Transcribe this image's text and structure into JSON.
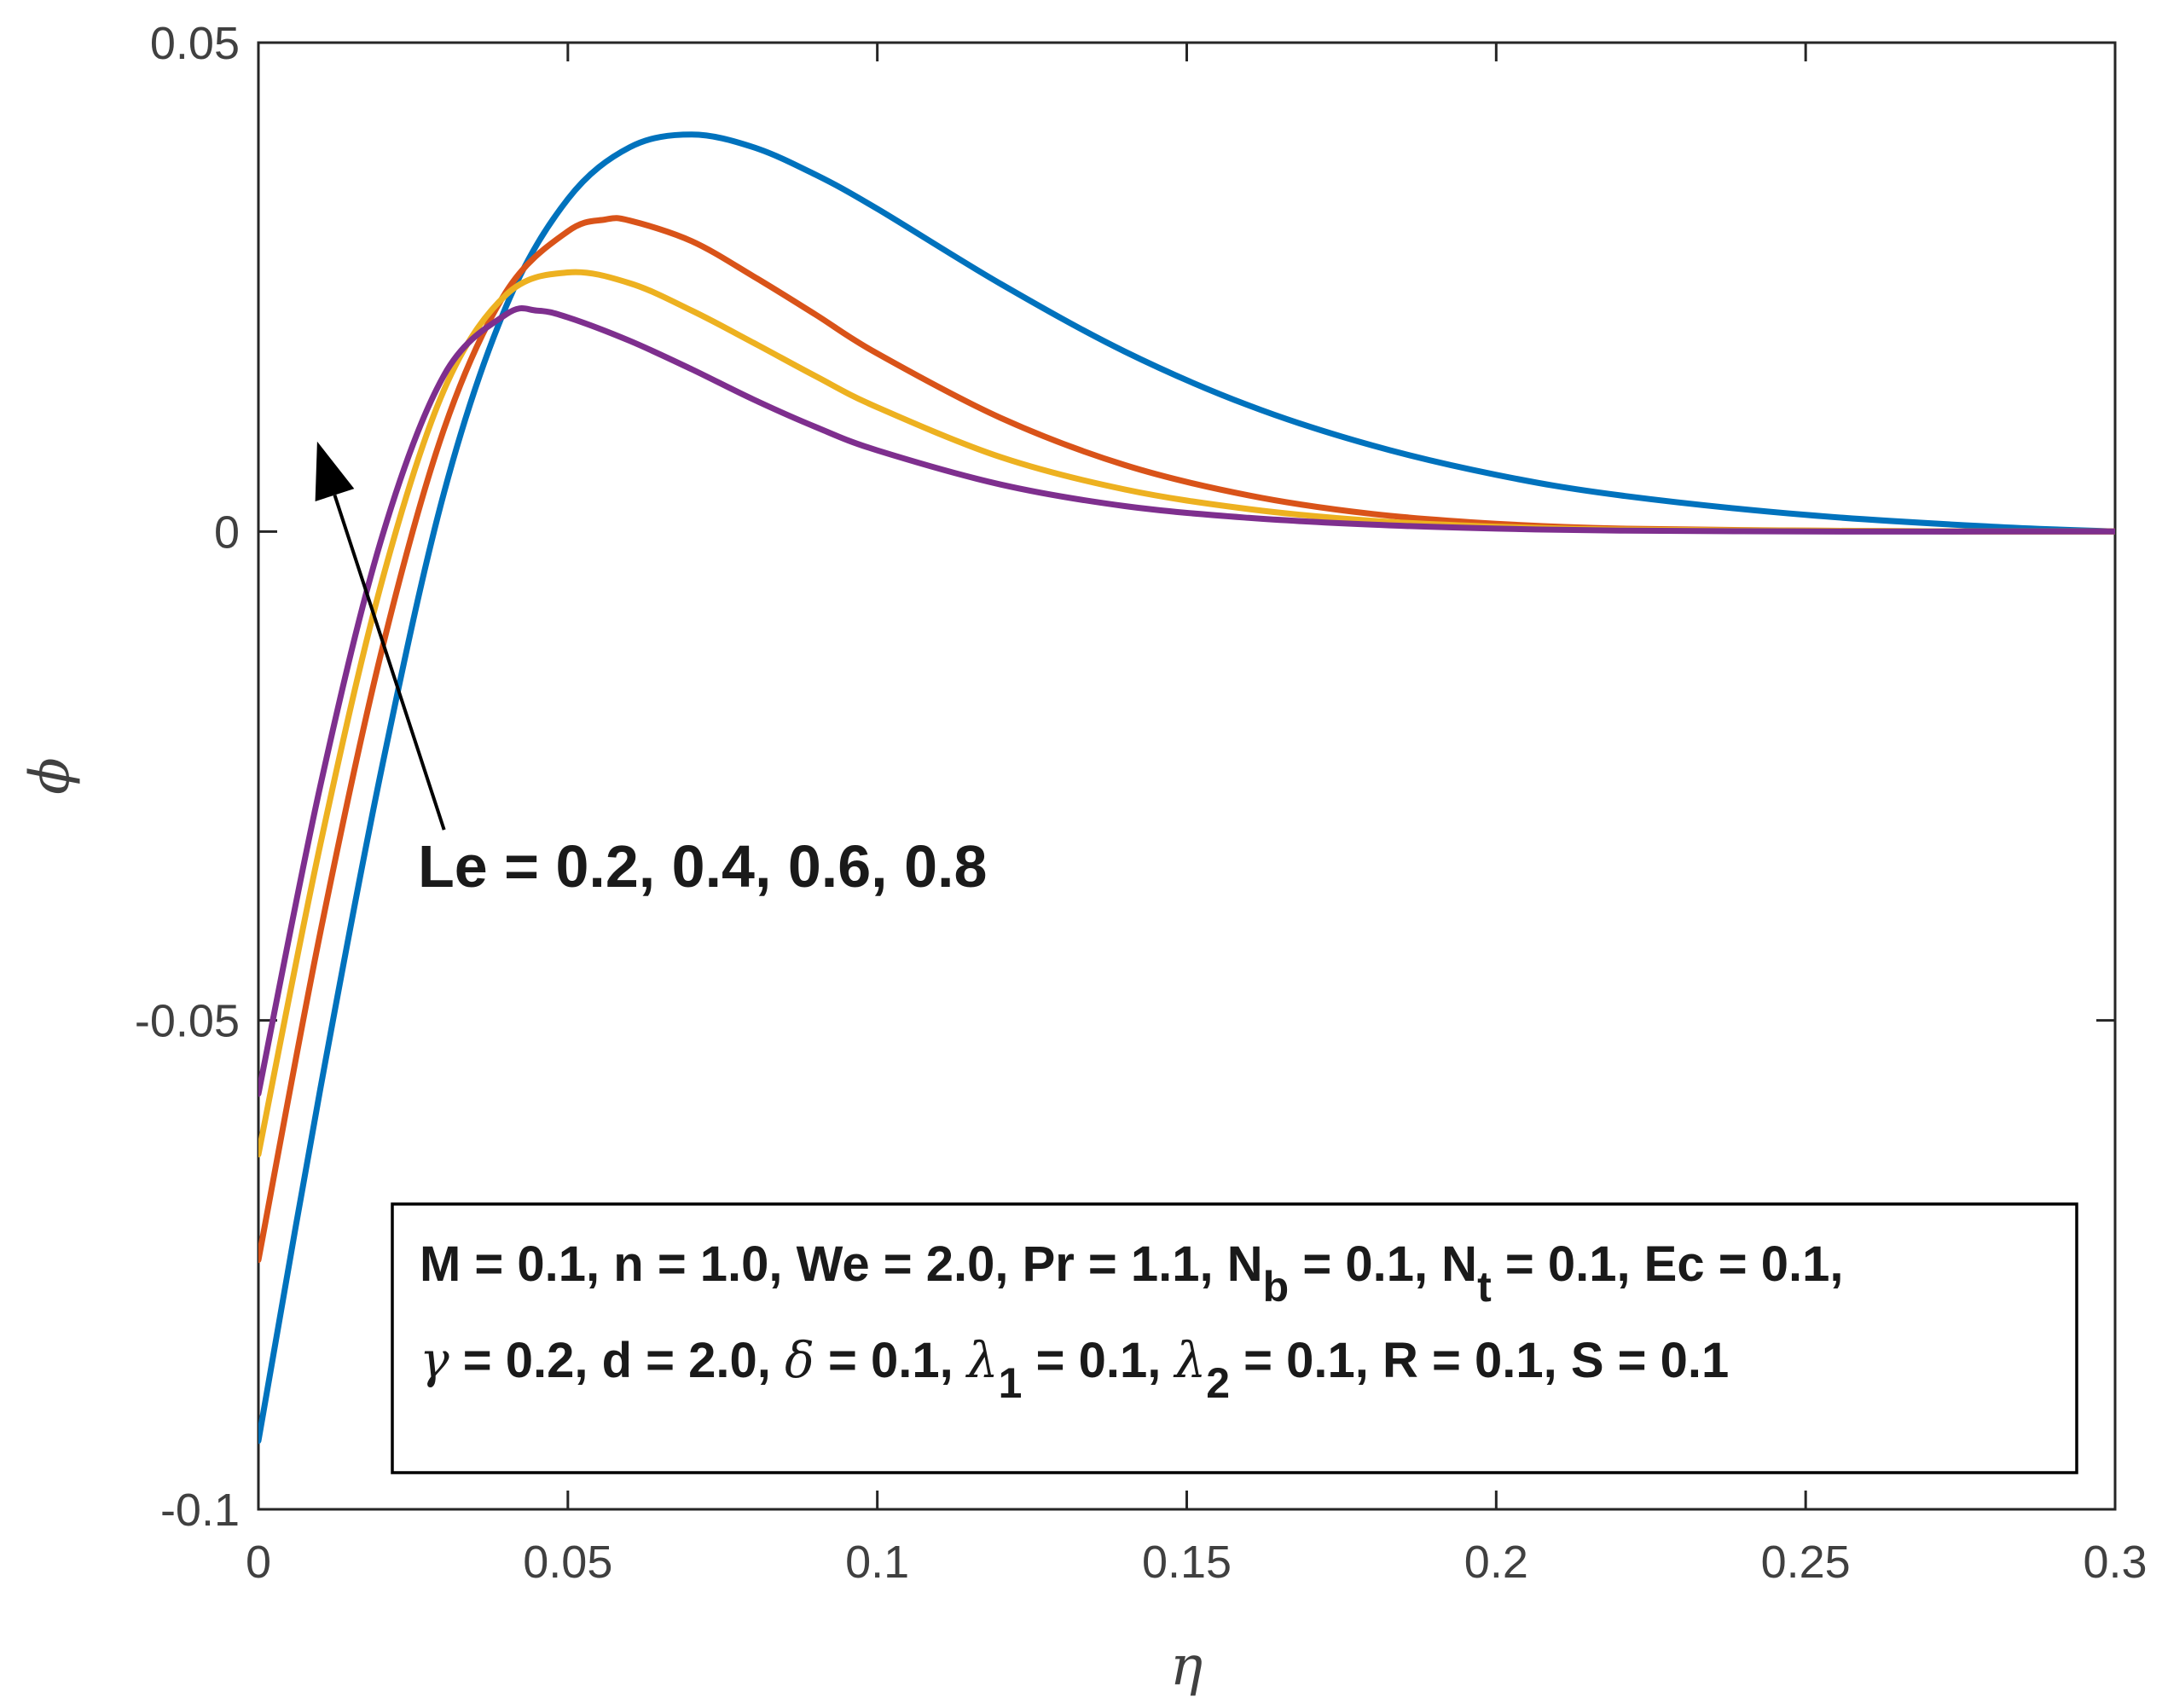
{
  "chart_data": {
    "type": "line",
    "title": "",
    "xlabel": "η",
    "ylabel": "ϕ",
    "xlim": [
      0,
      0.3
    ],
    "ylim": [
      -0.1,
      0.05
    ],
    "xticks": [
      0,
      0.05,
      0.1,
      0.15,
      0.2,
      0.25,
      0.3
    ],
    "xtick_labels": [
      "0",
      "0.05",
      "0.1",
      "0.15",
      "0.2",
      "0.25",
      "0.3"
    ],
    "yticks": [
      -0.1,
      -0.05,
      0,
      0.05
    ],
    "ytick_labels": [
      "-0.1",
      "-0.05",
      "0",
      "0.05"
    ],
    "grid": false,
    "series": [
      {
        "name": "Le = 0.2",
        "color": "#0072BD",
        "x": [
          0,
          0.01,
          0.02,
          0.03,
          0.04,
          0.05,
          0.06,
          0.07,
          0.08,
          0.09,
          0.1,
          0.12,
          0.14,
          0.16,
          0.18,
          0.2,
          0.22,
          0.25,
          0.28,
          0.3
        ],
        "y": [
          -0.093,
          -0.057,
          -0.024,
          0.004,
          0.023,
          0.034,
          0.0393,
          0.0406,
          0.0393,
          0.0365,
          0.033,
          0.0253,
          0.0184,
          0.0129,
          0.0088,
          0.0058,
          0.0037,
          0.0017,
          0.0005,
          0
        ]
      },
      {
        "name": "Le = 0.4",
        "color": "#D95319",
        "x": [
          0,
          0.01,
          0.02,
          0.03,
          0.04,
          0.05,
          0.056,
          0.06,
          0.07,
          0.08,
          0.09,
          0.1,
          0.12,
          0.14,
          0.16,
          0.18,
          0.2,
          0.22,
          0.25,
          0.28,
          0.3
        ],
        "y": [
          -0.0745,
          -0.041,
          -0.012,
          0.0105,
          0.0245,
          0.0307,
          0.0319,
          0.0318,
          0.0297,
          0.0261,
          0.0222,
          0.0182,
          0.0116,
          0.0068,
          0.0037,
          0.0018,
          0.0008,
          0.0003,
          0.0001,
          0,
          0
        ]
      },
      {
        "name": "Le = 0.6",
        "color": "#EDB120",
        "x": [
          0,
          0.01,
          0.02,
          0.03,
          0.04,
          0.05,
          0.06,
          0.07,
          0.08,
          0.09,
          0.1,
          0.12,
          0.14,
          0.16,
          0.18,
          0.2,
          0.22,
          0.25,
          0.28,
          0.3
        ],
        "y": [
          -0.0637,
          -0.032,
          -0.005,
          0.0145,
          0.0242,
          0.0265,
          0.0254,
          0.0226,
          0.0193,
          0.0159,
          0.0127,
          0.0076,
          0.0043,
          0.0023,
          0.0011,
          0.0005,
          0.0002,
          0.0001,
          0,
          0
        ]
      },
      {
        "name": "Le = 0.8",
        "color": "#7E2F8E",
        "x": [
          0,
          0.01,
          0.02,
          0.03,
          0.04,
          0.045,
          0.05,
          0.06,
          0.07,
          0.08,
          0.09,
          0.1,
          0.12,
          0.14,
          0.16,
          0.18,
          0.2,
          0.22,
          0.25,
          0.28,
          0.3
        ],
        "y": [
          -0.0575,
          -0.026,
          -0.0005,
          0.016,
          0.0222,
          0.0226,
          0.0219,
          0.0195,
          0.0166,
          0.0135,
          0.0107,
          0.0083,
          0.0048,
          0.0026,
          0.0014,
          0.0007,
          0.0003,
          0.0001,
          0,
          0,
          0
        ]
      }
    ],
    "arrow_annotation": {
      "label": "Le = 0.2, 0.4, 0.6, 0.8",
      "from": {
        "x": 0.03,
        "y": -0.0305
      },
      "to": {
        "x": 0.0095,
        "y": 0.0092
      }
    },
    "parameter_box": {
      "line1": {
        "part1": "M = 0.1, n = 1.0, We = 2.0, Pr = 1.1, N",
        "sub1": "b",
        "part2": " = 0.1, N",
        "sub2": "t",
        "part3": " = 0.1, Ec = 0.1,"
      },
      "line2": {
        "gamma": "γ",
        "part1": " = 0.2, d = 2.0, ",
        "delta": "δ",
        "part2": " = 0.1, ",
        "lambda1": "λ",
        "sub1": "1",
        "part3": " = 0.1, ",
        "lambda2": "λ",
        "sub2": "2",
        "part4": " = 0.1, R = 0.1, S = 0.1"
      }
    }
  }
}
